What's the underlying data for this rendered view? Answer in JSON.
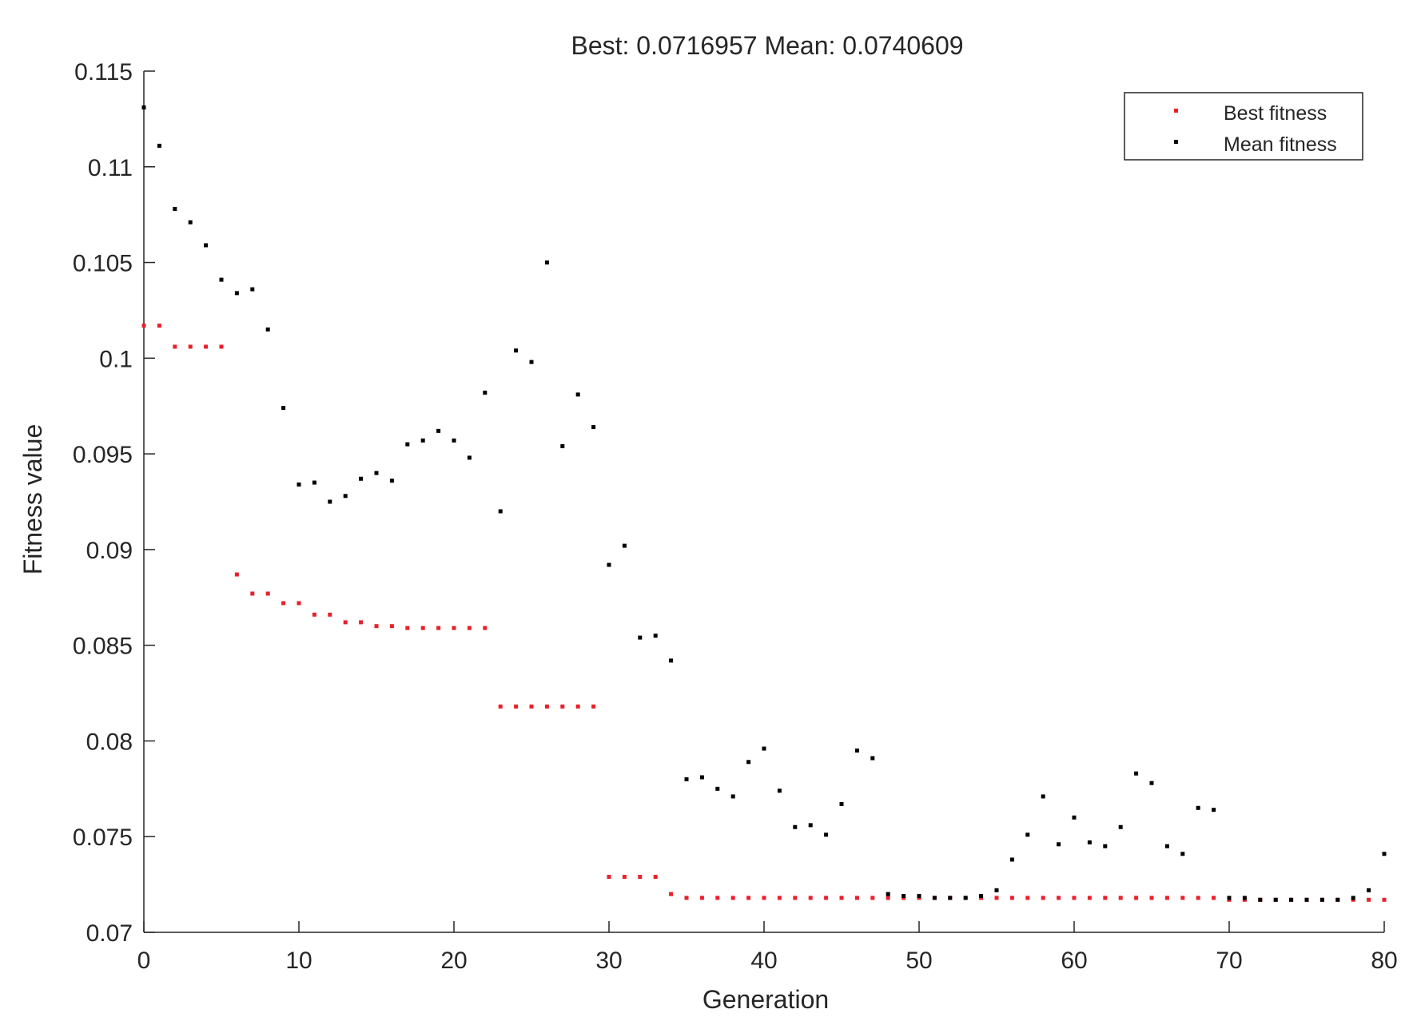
{
  "chart_data": {
    "type": "scatter",
    "title": "Best: 0.0716957 Mean: 0.0740609",
    "xlabel": "Generation",
    "ylabel": "Fitness value",
    "xlim": [
      0,
      80
    ],
    "ylim": [
      0.07,
      0.115
    ],
    "xticks": [
      0,
      10,
      20,
      30,
      40,
      50,
      60,
      70,
      80
    ],
    "yticks": [
      0.07,
      0.075,
      0.08,
      0.085,
      0.09,
      0.095,
      0.1,
      0.105,
      0.11,
      0.115
    ],
    "xtick_labels": [
      "0",
      "10",
      "20",
      "30",
      "40",
      "50",
      "60",
      "70",
      "80"
    ],
    "ytick_labels": [
      "0.07",
      "0.075",
      "0.08",
      "0.085",
      "0.09",
      "0.095",
      "0.1",
      "0.105",
      "0.11",
      "0.115"
    ],
    "grid": false,
    "legend_position": "top-right",
    "x": [
      0,
      1,
      2,
      3,
      4,
      5,
      6,
      7,
      8,
      9,
      10,
      11,
      12,
      13,
      14,
      15,
      16,
      17,
      18,
      19,
      20,
      21,
      22,
      23,
      24,
      25,
      26,
      27,
      28,
      29,
      30,
      31,
      32,
      33,
      34,
      35,
      36,
      37,
      38,
      39,
      40,
      41,
      42,
      43,
      44,
      45,
      46,
      47,
      48,
      49,
      50,
      51,
      52,
      53,
      54,
      55,
      56,
      57,
      58,
      59,
      60,
      61,
      62,
      63,
      64,
      65,
      66,
      67,
      68,
      69,
      70,
      71,
      72,
      73,
      74,
      75,
      76,
      77,
      78,
      79,
      80
    ],
    "series": [
      {
        "name": "Best fitness",
        "color": "#e8202a",
        "values": [
          0.1017,
          0.1017,
          0.1006,
          0.1006,
          0.1006,
          0.1006,
          0.0887,
          0.0877,
          0.0877,
          0.0872,
          0.0872,
          0.0866,
          0.0866,
          0.0862,
          0.0862,
          0.086,
          0.086,
          0.0859,
          0.0859,
          0.0859,
          0.0859,
          0.0859,
          0.0859,
          0.0818,
          0.0818,
          0.0818,
          0.0818,
          0.0818,
          0.0818,
          0.0818,
          0.0729,
          0.0729,
          0.0729,
          0.0729,
          0.072,
          0.0718,
          0.0718,
          0.0718,
          0.0718,
          0.0718,
          0.0718,
          0.0718,
          0.0718,
          0.0718,
          0.0718,
          0.0718,
          0.0718,
          0.0718,
          0.0718,
          0.0718,
          0.0718,
          0.0718,
          0.0718,
          0.0718,
          0.0718,
          0.0718,
          0.0718,
          0.0718,
          0.0718,
          0.0718,
          0.0718,
          0.0718,
          0.0718,
          0.0718,
          0.0718,
          0.0718,
          0.0718,
          0.0718,
          0.0718,
          0.0718,
          0.0717,
          0.0717,
          0.0717,
          0.0717,
          0.0717,
          0.0717,
          0.0717,
          0.0717,
          0.0717,
          0.0717,
          0.0717
        ]
      },
      {
        "name": "Mean fitness",
        "color": "#000000",
        "values": [
          0.1131,
          0.1111,
          0.1078,
          0.1071,
          0.1059,
          0.1041,
          0.1034,
          0.1036,
          0.1015,
          0.0974,
          0.0934,
          0.0935,
          0.0925,
          0.0928,
          0.0937,
          0.094,
          0.0936,
          0.0955,
          0.0957,
          0.0962,
          0.0957,
          0.0948,
          0.0982,
          0.092,
          0.1004,
          0.0998,
          0.105,
          0.0954,
          0.0981,
          0.0964,
          0.0892,
          0.0902,
          0.0854,
          0.0855,
          0.0842,
          0.078,
          0.0781,
          0.0775,
          0.0771,
          0.0789,
          0.0796,
          0.0774,
          0.0755,
          0.0756,
          0.0751,
          0.0767,
          0.0795,
          0.0791,
          0.072,
          0.0719,
          0.0719,
          0.0718,
          0.0718,
          0.0718,
          0.0719,
          0.0722,
          0.0738,
          0.0751,
          0.0771,
          0.0746,
          0.076,
          0.0747,
          0.0745,
          0.0755,
          0.0783,
          0.0778,
          0.0745,
          0.0741,
          0.0765,
          0.0764,
          0.0718,
          0.0718,
          0.0717,
          0.0717,
          0.0717,
          0.0717,
          0.0717,
          0.0717,
          0.0718,
          0.0722,
          0.0741
        ]
      }
    ]
  }
}
